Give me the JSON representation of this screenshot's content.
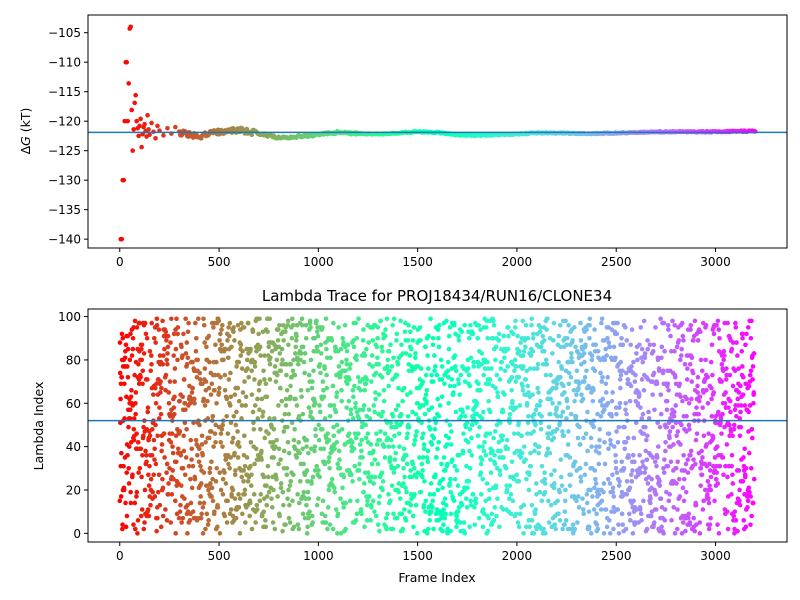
{
  "chart_data": [
    {
      "type": "scatter",
      "name": "delta-g-convergence",
      "title": "",
      "xlabel": "",
      "ylabel": "ΔG (kT)",
      "xlim": [
        -160,
        3360
      ],
      "ylim": [
        -141.5,
        -102
      ],
      "xticks": [
        0,
        500,
        1000,
        1500,
        2000,
        2500,
        3000
      ],
      "yticks": [
        -140,
        -135,
        -130,
        -125,
        -120,
        -115,
        -110,
        -105
      ],
      "hline": -121.9,
      "hline_color": "#1f77b4",
      "colormap": "rainbow",
      "grid": false,
      "early_points": [
        [
          5,
          -140.0
        ],
        [
          10,
          -140.0
        ],
        [
          15,
          -130.0
        ],
        [
          20,
          -130.0
        ],
        [
          25,
          -120.0
        ],
        [
          30,
          -110.0
        ],
        [
          35,
          -110.0
        ],
        [
          40,
          -120.0
        ],
        [
          45,
          -113.6
        ],
        [
          50,
          -104.3
        ],
        [
          55,
          -104.0
        ],
        [
          60,
          -118.1
        ],
        [
          65,
          -125.0
        ],
        [
          70,
          -121.4
        ],
        [
          75,
          -116.9
        ],
        [
          80,
          -115.6
        ],
        [
          85,
          -120.0
        ],
        [
          90,
          -121.2
        ],
        [
          95,
          -122.5
        ],
        [
          100,
          -120.8
        ],
        [
          105,
          -119.6
        ],
        [
          110,
          -124.4
        ],
        [
          115,
          -122.2
        ],
        [
          120,
          -121.0
        ],
        [
          125,
          -120.5
        ],
        [
          130,
          -121.7
        ],
        [
          135,
          -122.6
        ],
        [
          140,
          -119.0
        ],
        [
          145,
          -121.4
        ],
        [
          150,
          -122.3
        ],
        [
          160,
          -120.3
        ],
        [
          170,
          -121.8
        ],
        [
          180,
          -122.9
        ],
        [
          190,
          -120.8
        ],
        [
          200,
          -121.6
        ],
        [
          220,
          -122.4
        ],
        [
          240,
          -121.2
        ],
        [
          260,
          -122.1
        ],
        [
          280,
          -121.0
        ],
        [
          300,
          -121.8
        ]
      ],
      "trend": {
        "x": [
          300,
          400,
          500,
          600,
          700,
          800,
          900,
          1000,
          1100,
          1200,
          1300,
          1400,
          1500,
          1600,
          1700,
          1800,
          1900,
          2000,
          2100,
          2200,
          2300,
          2400,
          2500,
          2600,
          2700,
          2800,
          2900,
          3000,
          3100,
          3200
        ],
        "y": [
          -121.9,
          -122.6,
          -121.8,
          -121.5,
          -122.1,
          -122.8,
          -122.6,
          -122.3,
          -121.9,
          -122.1,
          -122.2,
          -122.0,
          -121.8,
          -121.9,
          -122.3,
          -122.4,
          -122.3,
          -122.2,
          -122.0,
          -122.0,
          -122.1,
          -122.1,
          -122.0,
          -121.9,
          -121.8,
          -121.8,
          -121.8,
          -121.8,
          -121.7,
          -121.7
        ]
      },
      "n_points": 640
    },
    {
      "type": "scatter",
      "name": "lambda-trace",
      "title": "Lambda Trace for PROJ18434/RUN16/CLONE34",
      "xlabel": "Frame Index",
      "ylabel": "Lambda Index",
      "xlim": [
        -160,
        3360
      ],
      "ylim": [
        -4,
        103.5
      ],
      "xticks": [
        0,
        500,
        1000,
        1500,
        2000,
        2500,
        3000
      ],
      "yticks": [
        0,
        20,
        40,
        60,
        80,
        100
      ],
      "hline": 52,
      "hline_color": "#1f77b4",
      "colormap": "rainbow",
      "grid": false,
      "x_range": [
        0,
        3195
      ],
      "y_range": [
        0,
        99
      ],
      "n_points": 3200
    }
  ]
}
